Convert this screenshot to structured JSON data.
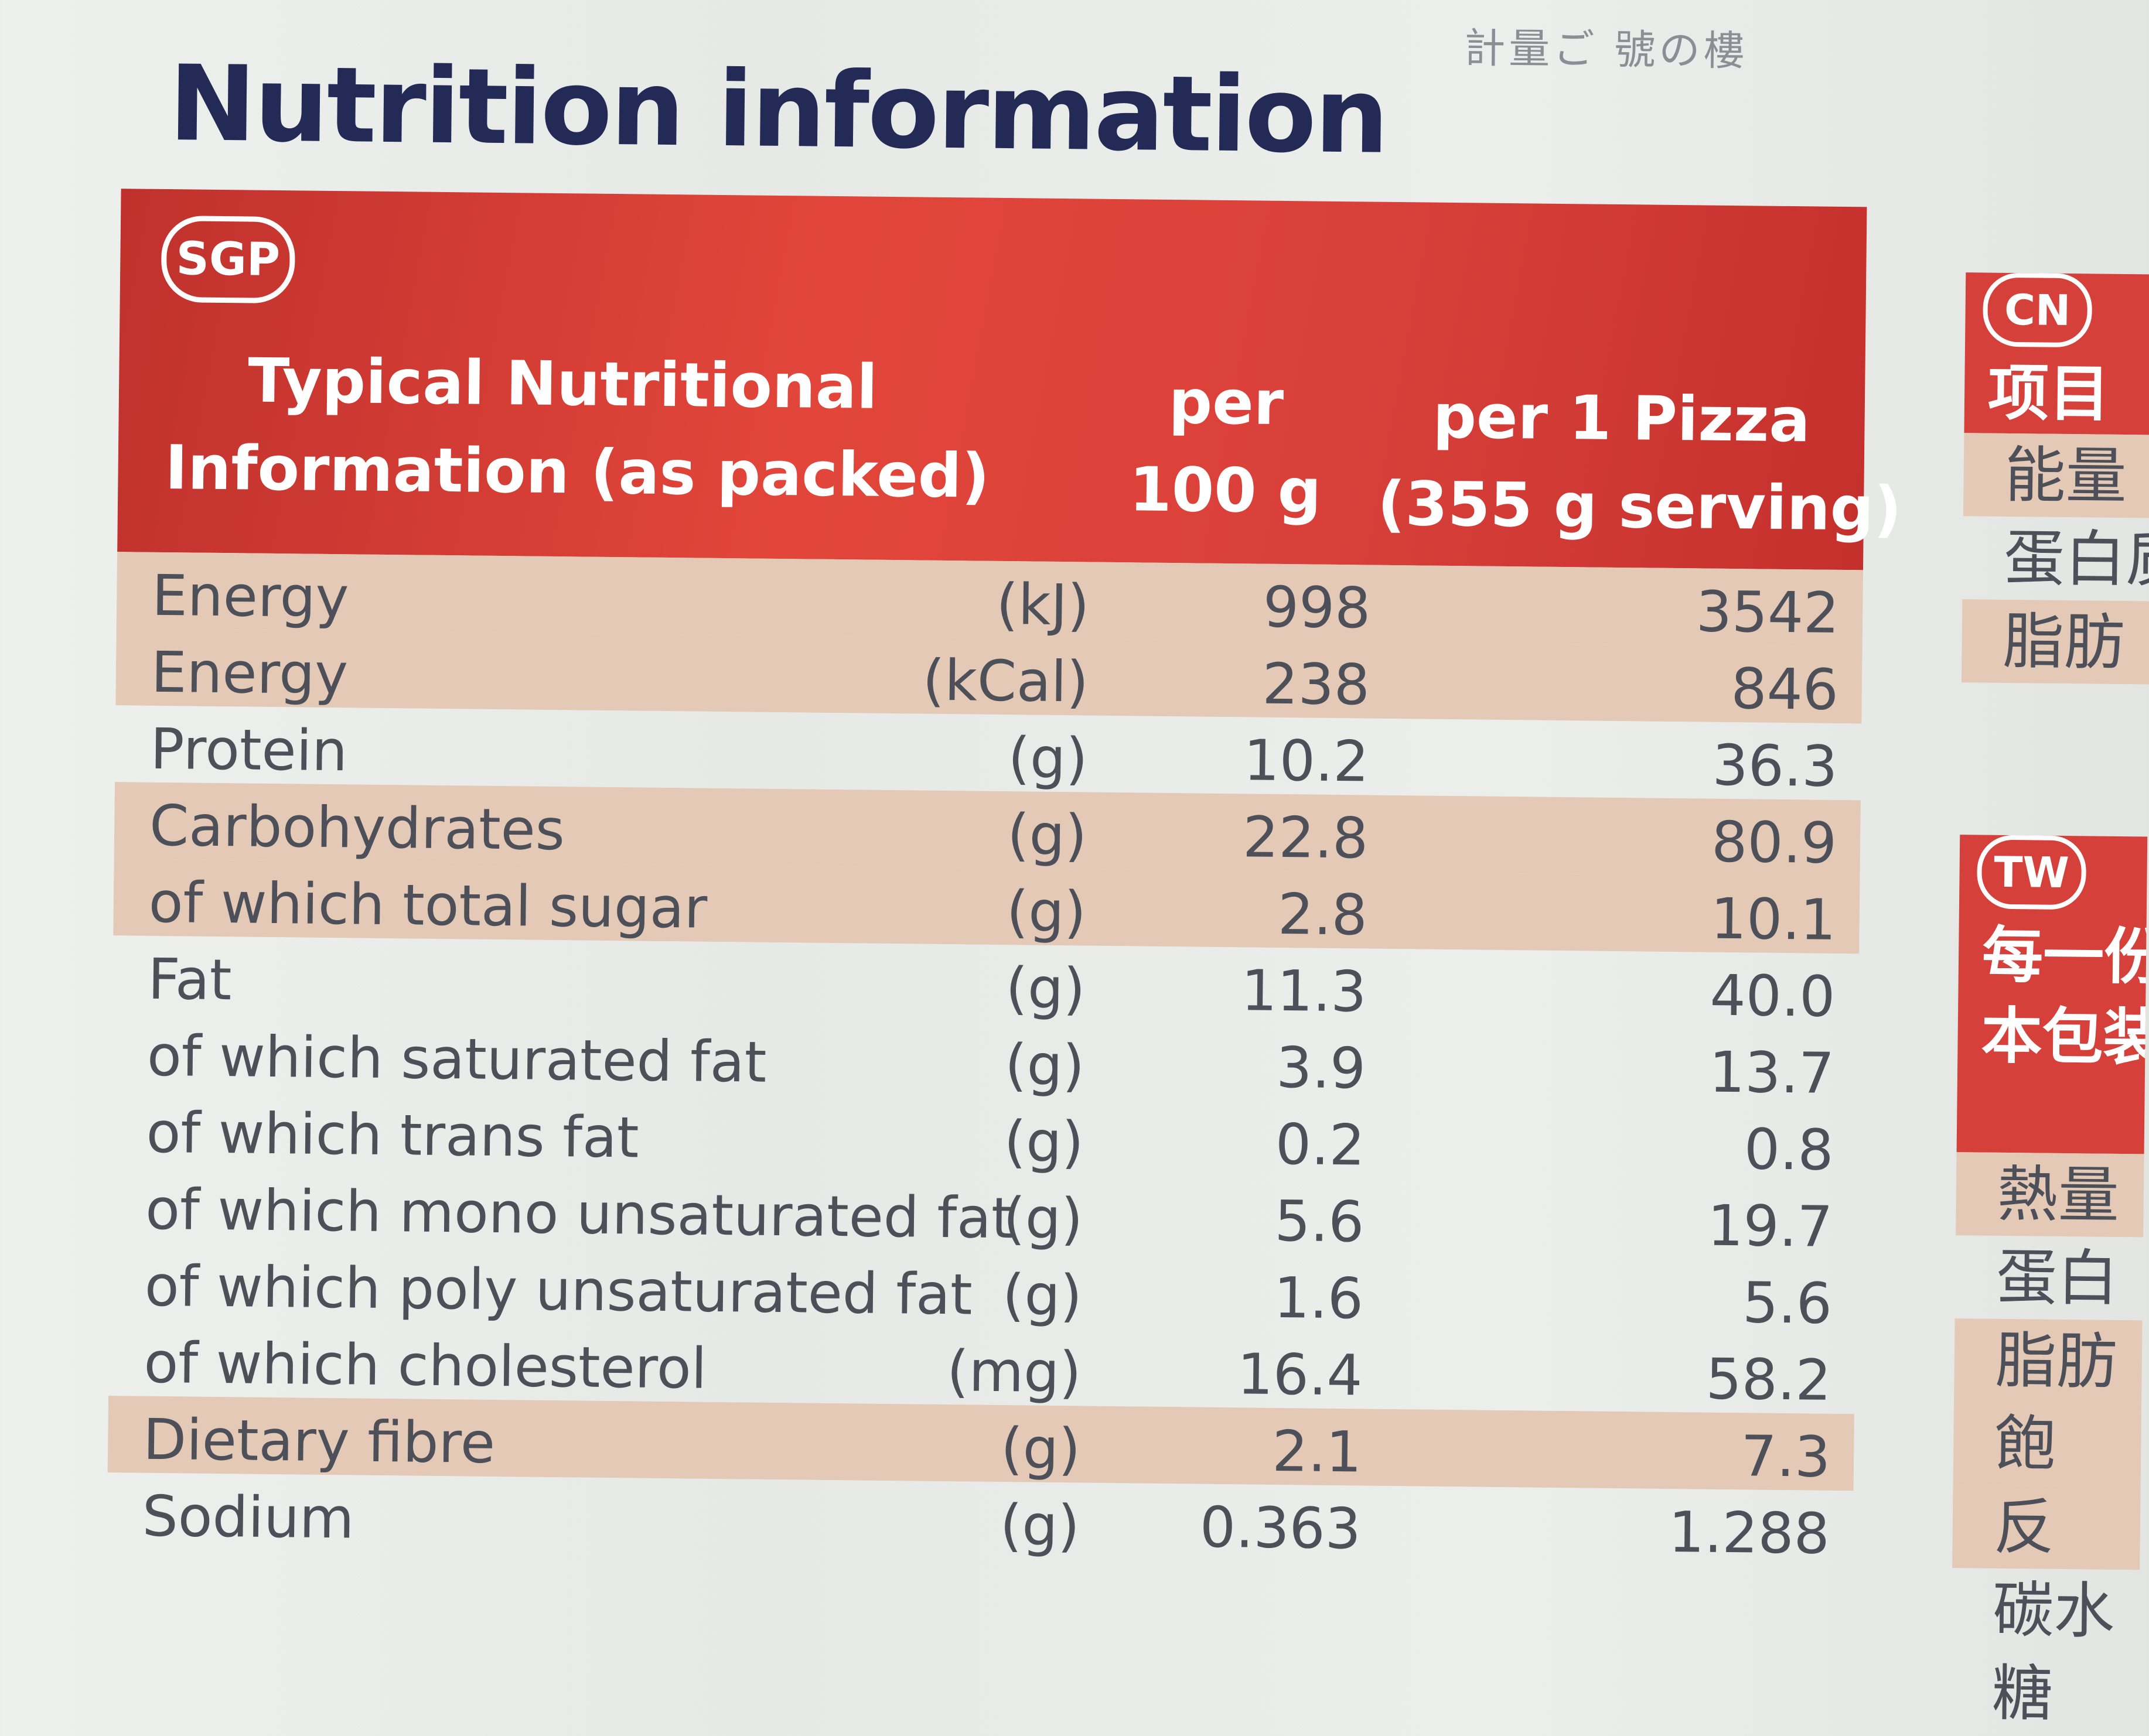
{
  "top_strip": "計量ご 號の樓",
  "title": "Nutrition information",
  "table": {
    "badge": "SGP",
    "header": {
      "description": [
        "Typical Nutritional",
        "Information (as packed)"
      ],
      "per_100g": [
        "per",
        "100 g"
      ],
      "per_serving": [
        "per 1 Pizza",
        "(355 g serving)"
      ]
    },
    "rows": [
      {
        "name": "Energy",
        "unit": "(kJ)",
        "per100": "998",
        "serving": "3542",
        "shade": true
      },
      {
        "name": "Energy",
        "unit": "(kCal)",
        "per100": "238",
        "serving": "846",
        "shade": true
      },
      {
        "name": "Protein",
        "unit": "(g)",
        "per100": "10.2",
        "serving": "36.3",
        "shade": false
      },
      {
        "name": "Carbohydrates",
        "unit": "(g)",
        "per100": "22.8",
        "serving": "80.9",
        "shade": true
      },
      {
        "name": "of which total sugar",
        "unit": "(g)",
        "per100": "2.8",
        "serving": "10.1",
        "shade": true
      },
      {
        "name": "Fat",
        "unit": "(g)",
        "per100": "11.3",
        "serving": "40.0",
        "shade": false
      },
      {
        "name": "of which saturated fat",
        "unit": "(g)",
        "per100": "3.9",
        "serving": "13.7",
        "shade": false
      },
      {
        "name": "of which trans fat",
        "unit": "(g)",
        "per100": "0.2",
        "serving": "0.8",
        "shade": false
      },
      {
        "name": "of which mono unsaturated fat",
        "unit": "(g)",
        "per100": "5.6",
        "serving": "19.7",
        "shade": false
      },
      {
        "name": "of which poly unsaturated fat",
        "unit": "(g)",
        "per100": "1.6",
        "serving": "5.6",
        "shade": false
      },
      {
        "name": "of which cholesterol",
        "unit": "(mg)",
        "per100": "16.4",
        "serving": "58.2",
        "shade": false
      },
      {
        "name": "Dietary fibre",
        "unit": "(g)",
        "per100": "2.1",
        "serving": "7.3",
        "shade": true
      },
      {
        "name": "Sodium",
        "unit": "(g)",
        "per100": "0.363",
        "serving": "1.288",
        "shade": false
      }
    ]
  },
  "side_cn": {
    "badge": "CN",
    "header": "项目",
    "rows": [
      "能量",
      "蛋白质",
      "脂肪"
    ]
  },
  "side_tw": {
    "badge": "TW",
    "header": [
      "每一份",
      "本包装"
    ],
    "rows": [
      "熱量",
      "蛋白",
      "脂肪",
      "飽",
      "反",
      "碳水",
      "糖"
    ]
  }
}
